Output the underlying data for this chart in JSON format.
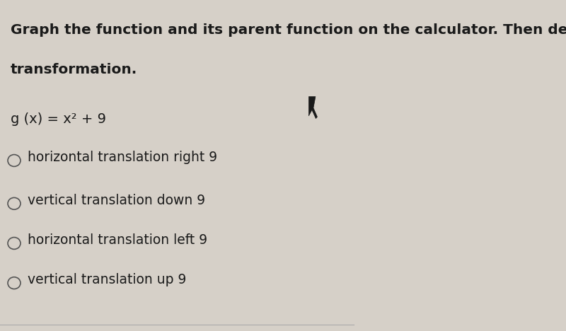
{
  "background_color": "#d6d0c8",
  "title_line1": "Graph the function and its parent function on the calculator. Then describe the",
  "title_line2": "transformation.",
  "equation": "g (x) = x² + 9",
  "options": [
    "horizontal translation right 9",
    "vertical translation down 9",
    "horizontal translation left 9",
    "vertical translation up 9"
  ],
  "title_fontsize": 14.5,
  "equation_fontsize": 14,
  "option_fontsize": 13.5,
  "text_color": "#1a1a1a",
  "circle_edge_color": "#555555",
  "separator_color": "#aaaaaa",
  "cursor_color": "#1a1a1a"
}
